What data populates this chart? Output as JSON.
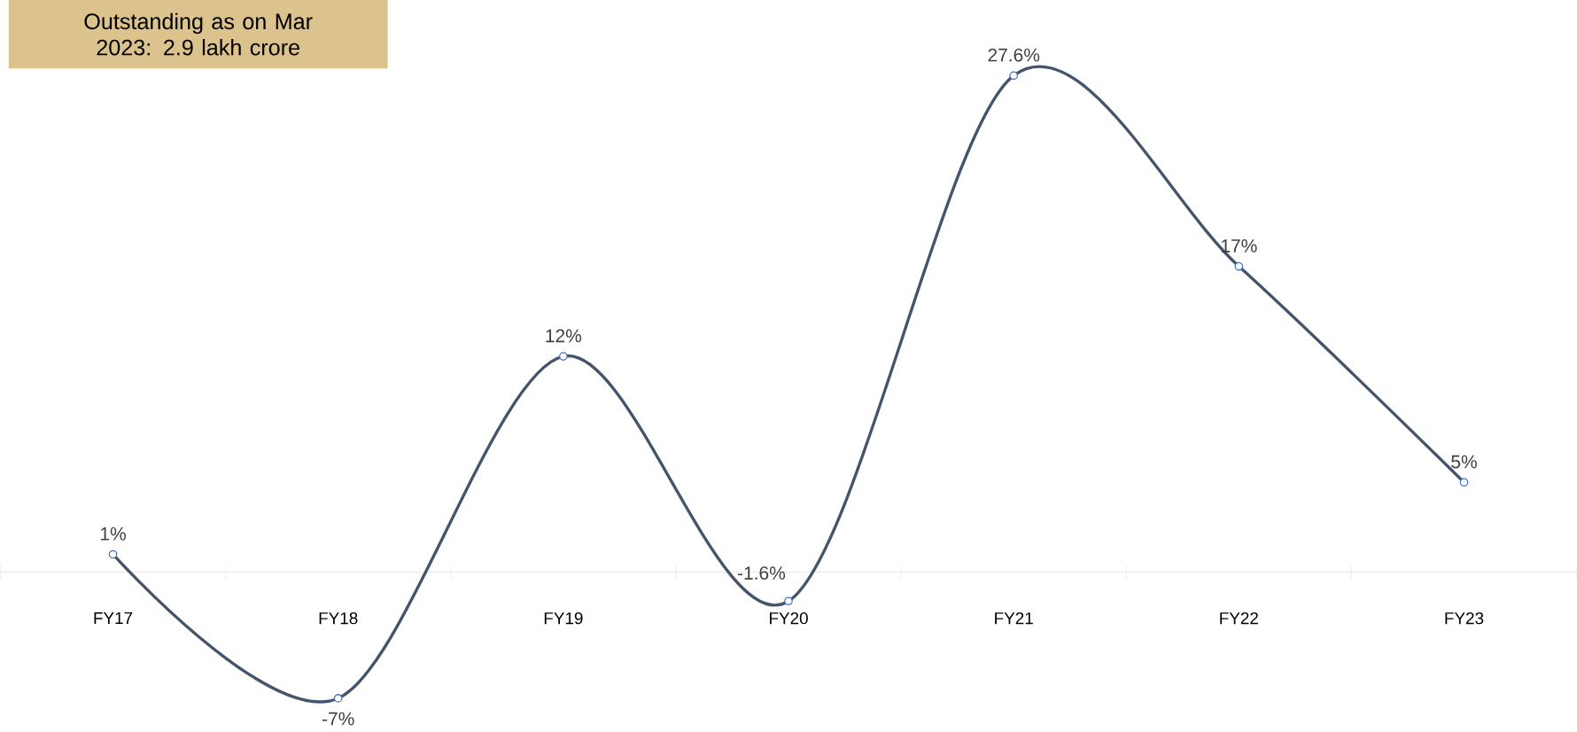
{
  "chart_data": {
    "type": "line",
    "categories": [
      "FY17",
      "FY18",
      "FY19",
      "FY20",
      "FY21",
      "FY22",
      "FY23"
    ],
    "series": [
      {
        "color": "#44546a",
        "values": [
          1,
          -7,
          12,
          -1.6,
          27.6,
          17,
          5
        ],
        "value_labels": [
          "1%",
          "-7%",
          "12%",
          "-1.6%",
          "27.6%",
          "17%",
          "5%"
        ]
      }
    ],
    "annotations": [
      "Outstanding as on Mar 2023: 2.9 lakh crore"
    ],
    "marker": "circle",
    "line_style": "solid"
  }
}
